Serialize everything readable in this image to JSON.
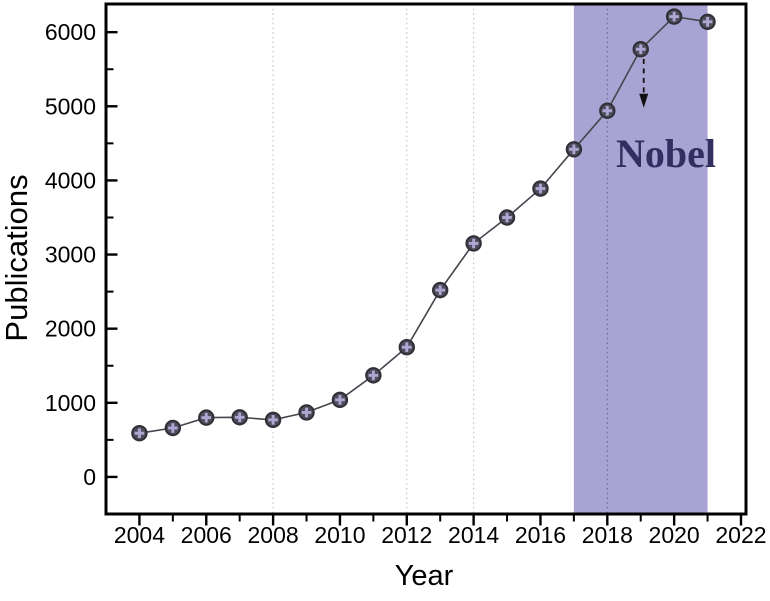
{
  "chart_data": {
    "type": "line",
    "title": "",
    "xlabel": "Year",
    "ylabel": "Publications",
    "x": [
      2004,
      2005,
      2006,
      2007,
      2008,
      2009,
      2010,
      2011,
      2012,
      2013,
      2014,
      2015,
      2016,
      2017,
      2018,
      2019,
      2020,
      2021
    ],
    "values": [
      590,
      660,
      800,
      805,
      770,
      870,
      1040,
      1370,
      1750,
      2520,
      3150,
      3500,
      3890,
      4420,
      4940,
      5770,
      6210,
      6140
    ],
    "xlim": [
      2003.0,
      2022.15
    ],
    "ylim": [
      -500,
      6380
    ],
    "x_major_ticks": [
      2004,
      2006,
      2008,
      2010,
      2012,
      2014,
      2016,
      2018,
      2020,
      2022
    ],
    "x_minor_ticks": [
      2005,
      2007,
      2009,
      2011,
      2013,
      2015,
      2017,
      2019,
      2021
    ],
    "y_major_ticks": [
      0,
      1000,
      2000,
      3000,
      4000,
      5000,
      6000
    ],
    "y_minor_ticks": [
      500,
      1500,
      2500,
      3500,
      4500,
      5500
    ],
    "gridlines_x": [
      2008,
      2012,
      2014,
      2018
    ],
    "grid_colors": [
      "#c6c6c6",
      "#c6c6c6",
      "#c6c6c6",
      "#716c96"
    ],
    "grid_style": "dotted",
    "legend_position": "none",
    "shaded_region": {
      "x_start": 2017,
      "x_end": 2021,
      "color": "#a9a3d3"
    },
    "annotation": {
      "text": "Nobel",
      "color": "#322e60",
      "arrow": {
        "x_year": 2019,
        "value_from": 5640,
        "value_to": 5170,
        "style": "dashed",
        "color": "#111111"
      }
    },
    "marker": {
      "shape": "circle-plus",
      "fill": "#4e4e5b",
      "stroke": "#2f2f38",
      "cross_color": "#aea7d4"
    },
    "line_color": "#45454d",
    "axis_color": "#000000"
  }
}
